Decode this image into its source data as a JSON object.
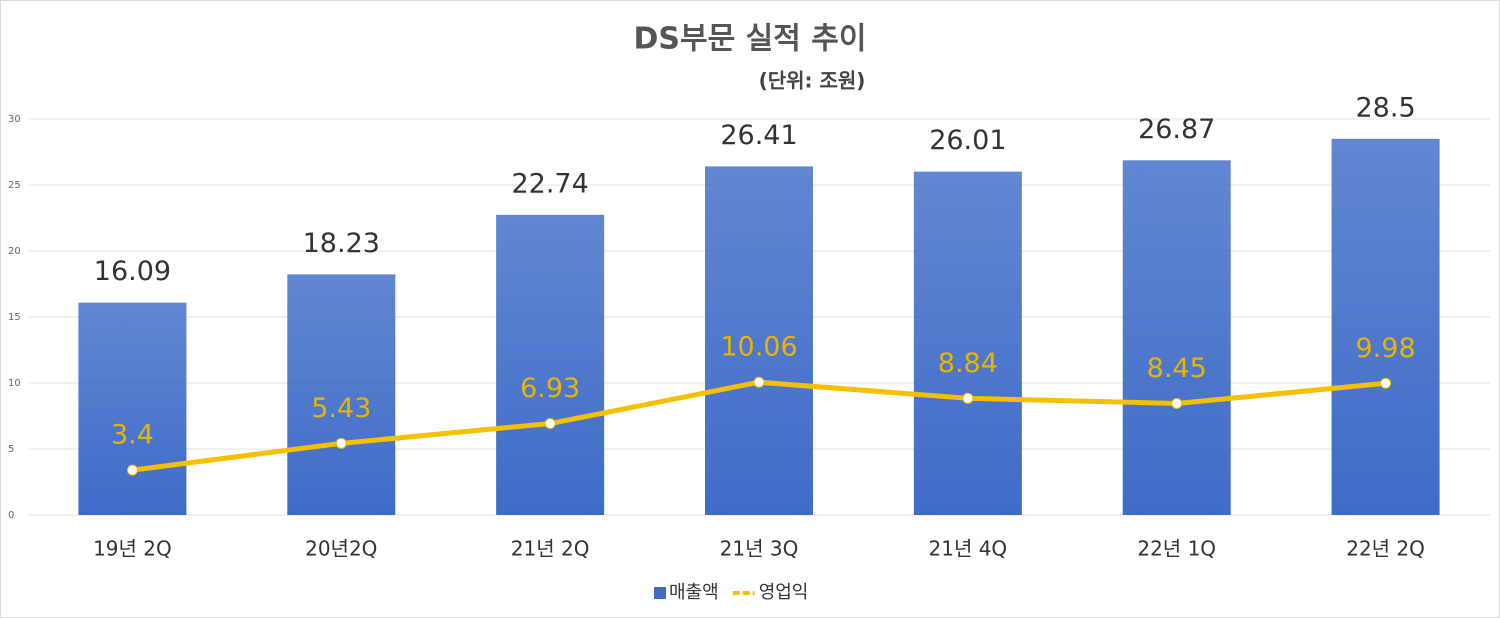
{
  "chart_data": {
    "type": "bar",
    "title": "DS부문 실적 추이",
    "subtitle": "(단위: 조원)",
    "categories": [
      "19년 2Q",
      "20년2Q",
      "21년 2Q",
      "21년 3Q",
      "21년 4Q",
      "22년 1Q",
      "22년 2Q"
    ],
    "series": [
      {
        "name": "매출액",
        "type": "bar",
        "color": "#3f6cc8",
        "values": [
          16.09,
          18.23,
          22.74,
          26.41,
          26.01,
          26.87,
          28.5
        ]
      },
      {
        "name": "영업익",
        "type": "line",
        "color": "#f5c000",
        "values": [
          3.4,
          5.43,
          6.93,
          10.06,
          8.84,
          8.45,
          9.98
        ]
      }
    ],
    "ylim": [
      0,
      30
    ],
    "yticks": [
      0,
      5,
      10,
      15,
      20,
      25,
      30
    ],
    "grid": true,
    "legend": "bottom"
  }
}
